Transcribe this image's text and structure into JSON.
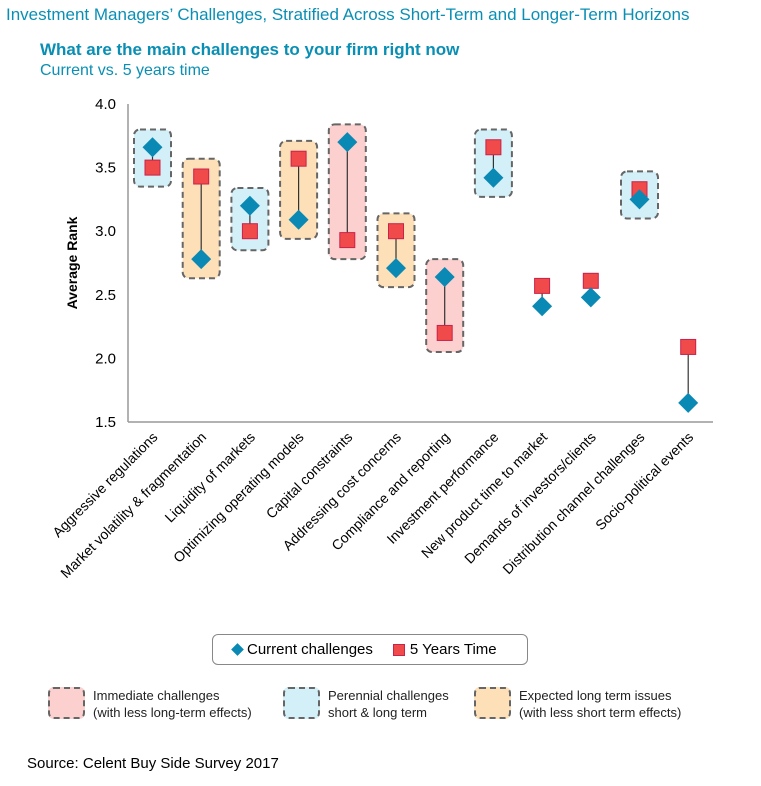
{
  "title": "Investment Managers’ Challenges, Stratified Across Short-Term and Longer-Term Horizons",
  "subtitle": "What are the main challenges to your firm right now",
  "subtitle2": "Current vs. 5 years time",
  "source": "Source: Celent Buy Side Survey 2017",
  "colors": {
    "current": "#0a89b4",
    "future": "#f04a4a",
    "immediate": "#fdd0d0",
    "perennial": "#d3f0f8",
    "expected": "#fde0b8",
    "title": "#0a8fb4"
  },
  "chart_data": {
    "type": "scatter",
    "ylabel": "Average Rank",
    "ylim": [
      1.5,
      4.0
    ],
    "yticks": [
      "4.0",
      "3.5",
      "3.0",
      "2.5",
      "2.0",
      "1.5"
    ],
    "grid": false,
    "legend_position": "bottom",
    "categories": [
      "Aggressive regulations",
      "Market volatility & fragmentation",
      "Liquidity of markets",
      "Optimizing operating models",
      "Capital constraints",
      "Addressing cost concerns",
      "Compliance and reporting",
      "Investment performance",
      "New product time to market",
      "Demands of investors/clients",
      "Distribution channel challenges",
      "Socio-political events"
    ],
    "series": [
      {
        "name": "Current challenges",
        "marker": "diamond",
        "values": [
          3.66,
          2.78,
          3.2,
          3.09,
          3.7,
          2.71,
          2.64,
          3.42,
          2.41,
          2.48,
          3.25,
          1.65
        ]
      },
      {
        "name": "5 Years Time",
        "marker": "square",
        "values": [
          3.5,
          3.43,
          3.0,
          3.57,
          2.93,
          3.0,
          2.2,
          3.66,
          2.57,
          2.61,
          3.33,
          2.09
        ]
      }
    ],
    "groups": [
      "perennial",
      "expected",
      "perennial",
      "expected",
      "immediate",
      "expected",
      "immediate",
      "perennial",
      null,
      null,
      "perennial",
      null
    ]
  },
  "legend_groups": [
    {
      "key": "immediate",
      "line1": "Immediate challenges",
      "line2": "(with less long-term effects)"
    },
    {
      "key": "perennial",
      "line1": "Perennial challenges",
      "line2": "short & long term"
    },
    {
      "key": "expected",
      "line1": "Expected long term issues",
      "line2": "(with less short term effects)"
    }
  ]
}
